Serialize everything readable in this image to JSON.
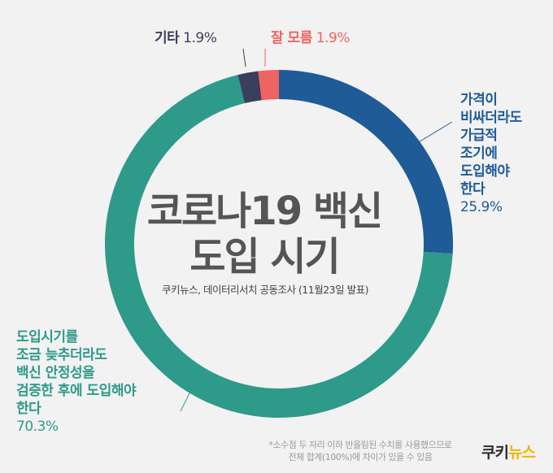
{
  "chart_data": {
    "type": "pie",
    "title": "코로나19 백신 도입 시기",
    "subtitle": "쿠키뉴스, 데이터리서치 공동조사 (11월23일 발표)",
    "slices": [
      {
        "label_lines": [
          "가격이",
          "비싸더라도",
          "가급적",
          "조기에",
          "도입해야",
          "한다"
        ],
        "value": 25.9,
        "value_label": "25.9%",
        "color": "#1f5b96",
        "label_color": "#1f5b96"
      },
      {
        "label_lines": [
          "도입시기를",
          "조금 늦추더라도",
          "백신 안정성을",
          "검증한 후에 도입해야",
          "한다"
        ],
        "value": 70.3,
        "value_label": "70.3%",
        "color": "#2e9a8a",
        "label_color": "#2e9a8a"
      },
      {
        "label_lines": [
          "기타"
        ],
        "value": 1.9,
        "value_label": "1.9%",
        "color": "#3b3f5e",
        "label_color": "#3b3f5e"
      },
      {
        "label_lines": [
          "잘 모름"
        ],
        "value": 1.9,
        "value_label": "1.9%",
        "color": "#ef6461",
        "label_color": "#ef6461"
      }
    ]
  },
  "center_title_lines": [
    "코로나19 백신",
    "도입 시기"
  ],
  "source": "쿠키뉴스, 데이터리서치 공동조사 (11월23일 발표)",
  "note_lines": [
    "*소수점 두 자리 이하 반올림된 수치를 사용했으므로",
    "전체 합계(100%)에 차이가 있을 수 있음"
  ],
  "logo": {
    "part1": "쿠키",
    "part2": "뉴스"
  }
}
